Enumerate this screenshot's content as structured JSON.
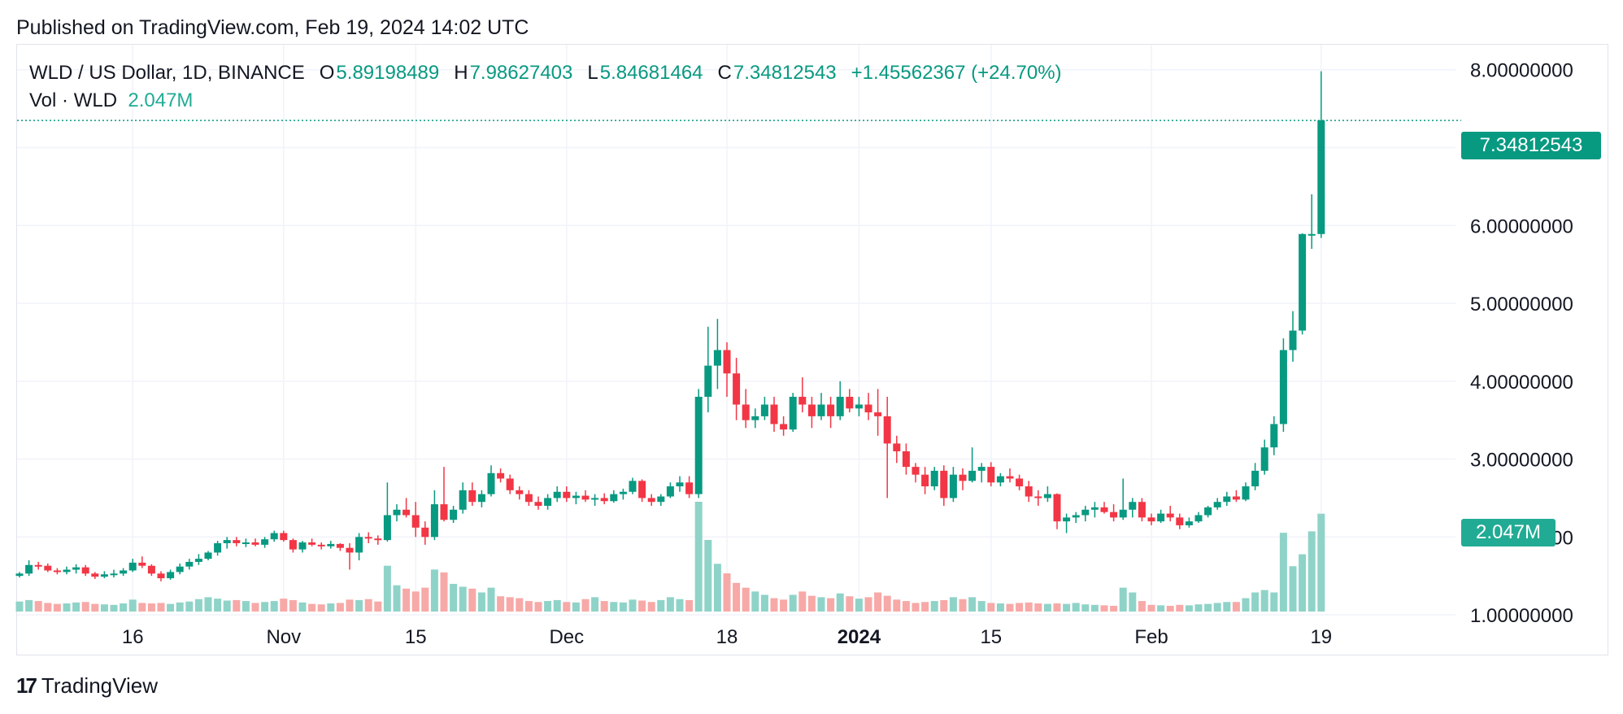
{
  "header": {
    "published": "Published on TradingView.com, Feb 19, 2024 14:02 UTC"
  },
  "legend": {
    "symbol": "WLD / US Dollar, 1D, BINANCE",
    "open_label": "O",
    "open": "5.89198489",
    "high_label": "H",
    "high": "7.98627403",
    "low_label": "L",
    "low": "5.84681464",
    "close_label": "C",
    "close": "7.34812543",
    "change": "+1.45562367 (+24.70%)",
    "volume_label": "Vol · WLD",
    "volume": "2.047M"
  },
  "price_tag": "7.34812543",
  "volume_tag": "2.047M",
  "footer": {
    "brand": "TradingView"
  },
  "colors": {
    "up": "#089981",
    "down": "#f23645",
    "volume_up": "#8fd3c8",
    "volume_down": "#f7a9a7",
    "grid": "#f0f3fa"
  },
  "chart_data": {
    "type": "candlestick",
    "y_range": [
      0.75,
      8.3
    ],
    "y_ticks": [
      "8.00000000",
      "7.00000000",
      "6.00000000",
      "5.00000000",
      "4.00000000",
      "3.00000000",
      "2.00000000",
      "1.00000000"
    ],
    "y_tick_values": [
      8,
      7,
      6,
      5,
      4,
      3,
      2,
      1
    ],
    "x_ticks": [
      {
        "label": "16",
        "index": 12,
        "bold": false
      },
      {
        "label": "Nov",
        "index": 28,
        "bold": false
      },
      {
        "label": "15",
        "index": 42,
        "bold": false
      },
      {
        "label": "Dec",
        "index": 58,
        "bold": false
      },
      {
        "label": "18",
        "index": 75,
        "bold": false
      },
      {
        "label": "2024",
        "index": 89,
        "bold": true
      },
      {
        "label": "15",
        "index": 103,
        "bold": false
      },
      {
        "label": "Feb",
        "index": 120,
        "bold": false
      },
      {
        "label": "19",
        "index": 138,
        "bold": false
      }
    ],
    "last_close": 7.348,
    "candles": [
      [
        1.5,
        1.55,
        1.48,
        1.53,
        0.21
      ],
      [
        1.53,
        1.7,
        1.5,
        1.64,
        0.24
      ],
      [
        1.64,
        1.68,
        1.58,
        1.63,
        0.22
      ],
      [
        1.63,
        1.66,
        1.55,
        1.57,
        0.18
      ],
      [
        1.57,
        1.6,
        1.52,
        1.55,
        0.16
      ],
      [
        1.55,
        1.62,
        1.52,
        1.58,
        0.17
      ],
      [
        1.58,
        1.65,
        1.53,
        1.61,
        0.19
      ],
      [
        1.61,
        1.64,
        1.5,
        1.53,
        0.2
      ],
      [
        1.53,
        1.55,
        1.46,
        1.49,
        0.16
      ],
      [
        1.49,
        1.56,
        1.47,
        1.52,
        0.15
      ],
      [
        1.52,
        1.58,
        1.48,
        1.53,
        0.14
      ],
      [
        1.53,
        1.6,
        1.5,
        1.57,
        0.17
      ],
      [
        1.57,
        1.72,
        1.55,
        1.67,
        0.25
      ],
      [
        1.67,
        1.75,
        1.6,
        1.63,
        0.18
      ],
      [
        1.63,
        1.65,
        1.5,
        1.53,
        0.17
      ],
      [
        1.53,
        1.56,
        1.43,
        1.47,
        0.18
      ],
      [
        1.47,
        1.58,
        1.45,
        1.55,
        0.16
      ],
      [
        1.55,
        1.66,
        1.52,
        1.62,
        0.19
      ],
      [
        1.62,
        1.72,
        1.58,
        1.68,
        0.21
      ],
      [
        1.68,
        1.78,
        1.64,
        1.72,
        0.26
      ],
      [
        1.72,
        1.82,
        1.7,
        1.8,
        0.3
      ],
      [
        1.8,
        1.95,
        1.76,
        1.92,
        0.27
      ],
      [
        1.92,
        2.0,
        1.85,
        1.96,
        0.23
      ],
      [
        1.96,
        2.0,
        1.88,
        1.92,
        0.24
      ],
      [
        1.92,
        1.98,
        1.87,
        1.93,
        0.22
      ],
      [
        1.93,
        1.98,
        1.88,
        1.9,
        0.18
      ],
      [
        1.9,
        2.0,
        1.86,
        1.97,
        0.2
      ],
      [
        1.97,
        2.08,
        1.94,
        2.05,
        0.22
      ],
      [
        2.05,
        2.08,
        1.94,
        1.96,
        0.27
      ],
      [
        1.96,
        1.98,
        1.8,
        1.84,
        0.24
      ],
      [
        1.84,
        1.95,
        1.8,
        1.93,
        0.19
      ],
      [
        1.93,
        1.98,
        1.88,
        1.9,
        0.16
      ],
      [
        1.9,
        1.93,
        1.84,
        1.88,
        0.15
      ],
      [
        1.88,
        1.95,
        1.85,
        1.91,
        0.17
      ],
      [
        1.91,
        1.92,
        1.82,
        1.86,
        0.18
      ],
      [
        1.86,
        1.92,
        1.58,
        1.8,
        0.25
      ],
      [
        1.8,
        2.05,
        1.7,
        2.0,
        0.24
      ],
      [
        2.0,
        2.06,
        1.92,
        1.98,
        0.26
      ],
      [
        1.98,
        2.02,
        1.9,
        1.96,
        0.21
      ],
      [
        1.96,
        2.7,
        1.94,
        2.28,
        0.96
      ],
      [
        2.28,
        2.42,
        2.2,
        2.35,
        0.55
      ],
      [
        2.35,
        2.5,
        2.25,
        2.28,
        0.48
      ],
      [
        2.28,
        2.45,
        2.0,
        2.12,
        0.42
      ],
      [
        2.12,
        2.2,
        1.9,
        2.0,
        0.5
      ],
      [
        2.0,
        2.6,
        1.96,
        2.42,
        0.88
      ],
      [
        2.42,
        2.9,
        2.2,
        2.22,
        0.82
      ],
      [
        2.22,
        2.4,
        2.18,
        2.35,
        0.58
      ],
      [
        2.35,
        2.7,
        2.3,
        2.6,
        0.52
      ],
      [
        2.6,
        2.7,
        2.4,
        2.45,
        0.48
      ],
      [
        2.45,
        2.6,
        2.38,
        2.55,
        0.4
      ],
      [
        2.55,
        2.92,
        2.52,
        2.82,
        0.5
      ],
      [
        2.82,
        2.88,
        2.7,
        2.75,
        0.32
      ],
      [
        2.75,
        2.8,
        2.55,
        2.6,
        0.3
      ],
      [
        2.6,
        2.65,
        2.48,
        2.55,
        0.28
      ],
      [
        2.55,
        2.6,
        2.4,
        2.45,
        0.22
      ],
      [
        2.45,
        2.52,
        2.35,
        2.4,
        0.2
      ],
      [
        2.4,
        2.55,
        2.35,
        2.5,
        0.22
      ],
      [
        2.5,
        2.65,
        2.45,
        2.58,
        0.24
      ],
      [
        2.58,
        2.65,
        2.45,
        2.5,
        0.2
      ],
      [
        2.5,
        2.58,
        2.42,
        2.53,
        0.19
      ],
      [
        2.53,
        2.6,
        2.45,
        2.48,
        0.26
      ],
      [
        2.48,
        2.55,
        2.4,
        2.5,
        0.3
      ],
      [
        2.5,
        2.56,
        2.42,
        2.46,
        0.22
      ],
      [
        2.46,
        2.6,
        2.44,
        2.55,
        0.2
      ],
      [
        2.55,
        2.62,
        2.48,
        2.58,
        0.19
      ],
      [
        2.58,
        2.76,
        2.55,
        2.72,
        0.25
      ],
      [
        2.72,
        2.74,
        2.45,
        2.5,
        0.23
      ],
      [
        2.5,
        2.55,
        2.4,
        2.45,
        0.2
      ],
      [
        2.45,
        2.55,
        2.4,
        2.52,
        0.24
      ],
      [
        2.52,
        2.7,
        2.5,
        2.65,
        0.3
      ],
      [
        2.65,
        2.78,
        2.58,
        2.7,
        0.26
      ],
      [
        2.7,
        2.78,
        2.5,
        2.55,
        0.24
      ],
      [
        2.55,
        3.9,
        2.5,
        3.8,
        2.3
      ],
      [
        3.8,
        4.7,
        3.6,
        4.2,
        1.5
      ],
      [
        4.2,
        4.8,
        3.9,
        4.4,
        1.0
      ],
      [
        4.4,
        4.5,
        3.8,
        4.1,
        0.8
      ],
      [
        4.1,
        4.3,
        3.5,
        3.7,
        0.6
      ],
      [
        3.7,
        3.9,
        3.4,
        3.5,
        0.5
      ],
      [
        3.5,
        3.65,
        3.4,
        3.55,
        0.42
      ],
      [
        3.55,
        3.8,
        3.5,
        3.7,
        0.35
      ],
      [
        3.7,
        3.8,
        3.35,
        3.45,
        0.28
      ],
      [
        3.45,
        3.55,
        3.3,
        3.38,
        0.25
      ],
      [
        3.38,
        3.85,
        3.35,
        3.8,
        0.35
      ],
      [
        3.8,
        4.05,
        3.6,
        3.7,
        0.42
      ],
      [
        3.7,
        3.8,
        3.4,
        3.55,
        0.33
      ],
      [
        3.55,
        3.85,
        3.5,
        3.7,
        0.3
      ],
      [
        3.7,
        3.8,
        3.4,
        3.55,
        0.28
      ],
      [
        3.55,
        4.0,
        3.5,
        3.8,
        0.38
      ],
      [
        3.8,
        3.9,
        3.6,
        3.65,
        0.32
      ],
      [
        3.65,
        3.8,
        3.55,
        3.7,
        0.27
      ],
      [
        3.7,
        3.85,
        3.5,
        3.6,
        0.3
      ],
      [
        3.6,
        3.9,
        3.3,
        3.55,
        0.4
      ],
      [
        3.55,
        3.8,
        2.5,
        3.2,
        0.33
      ],
      [
        3.2,
        3.3,
        2.95,
        3.1,
        0.25
      ],
      [
        3.1,
        3.2,
        2.8,
        2.9,
        0.22
      ],
      [
        2.9,
        2.95,
        2.7,
        2.8,
        0.18
      ],
      [
        2.8,
        2.9,
        2.55,
        2.65,
        0.2
      ],
      [
        2.65,
        2.9,
        2.6,
        2.85,
        0.22
      ],
      [
        2.85,
        2.92,
        2.4,
        2.5,
        0.24
      ],
      [
        2.5,
        2.9,
        2.45,
        2.8,
        0.3
      ],
      [
        2.8,
        2.88,
        2.6,
        2.72,
        0.26
      ],
      [
        2.72,
        3.15,
        2.7,
        2.85,
        0.3
      ],
      [
        2.85,
        2.95,
        2.7,
        2.9,
        0.22
      ],
      [
        2.9,
        2.96,
        2.65,
        2.7,
        0.18
      ],
      [
        2.7,
        2.82,
        2.65,
        2.78,
        0.17
      ],
      [
        2.78,
        2.88,
        2.7,
        2.75,
        0.16
      ],
      [
        2.75,
        2.8,
        2.6,
        2.65,
        0.18
      ],
      [
        2.65,
        2.72,
        2.45,
        2.52,
        0.19
      ],
      [
        2.52,
        2.6,
        2.4,
        2.5,
        0.17
      ],
      [
        2.5,
        2.65,
        2.45,
        2.55,
        0.16
      ],
      [
        2.55,
        2.56,
        2.1,
        2.2,
        0.17
      ],
      [
        2.2,
        2.3,
        2.05,
        2.25,
        0.16
      ],
      [
        2.25,
        2.32,
        2.18,
        2.28,
        0.18
      ],
      [
        2.28,
        2.4,
        2.2,
        2.35,
        0.15
      ],
      [
        2.35,
        2.45,
        2.25,
        2.38,
        0.14
      ],
      [
        2.38,
        2.45,
        2.3,
        2.32,
        0.13
      ],
      [
        2.32,
        2.42,
        2.2,
        2.25,
        0.12
      ],
      [
        2.25,
        2.75,
        2.22,
        2.35,
        0.5
      ],
      [
        2.35,
        2.5,
        2.25,
        2.45,
        0.4
      ],
      [
        2.45,
        2.5,
        2.2,
        2.25,
        0.22
      ],
      [
        2.25,
        2.3,
        2.15,
        2.2,
        0.14
      ],
      [
        2.2,
        2.35,
        2.18,
        2.3,
        0.13
      ],
      [
        2.3,
        2.4,
        2.2,
        2.25,
        0.12
      ],
      [
        2.25,
        2.3,
        2.1,
        2.15,
        0.14
      ],
      [
        2.15,
        2.25,
        2.12,
        2.2,
        0.13
      ],
      [
        2.2,
        2.32,
        2.18,
        2.28,
        0.15
      ],
      [
        2.28,
        2.4,
        2.25,
        2.38,
        0.16
      ],
      [
        2.38,
        2.5,
        2.35,
        2.45,
        0.18
      ],
      [
        2.45,
        2.58,
        2.4,
        2.52,
        0.2
      ],
      [
        2.52,
        2.6,
        2.45,
        2.48,
        0.2
      ],
      [
        2.48,
        2.7,
        2.46,
        2.65,
        0.28
      ],
      [
        2.65,
        2.95,
        2.6,
        2.85,
        0.4
      ],
      [
        2.85,
        3.25,
        2.8,
        3.15,
        0.45
      ],
      [
        3.15,
        3.55,
        3.05,
        3.45,
        0.4
      ],
      [
        3.45,
        4.55,
        3.35,
        4.4,
        1.65
      ],
      [
        4.4,
        4.9,
        4.25,
        4.65,
        0.95
      ],
      [
        4.65,
        5.9,
        4.6,
        5.89,
        1.2
      ],
      [
        5.89,
        6.4,
        5.7,
        5.89,
        1.68
      ],
      [
        5.89,
        7.98,
        5.84,
        7.35,
        2.05
      ]
    ]
  }
}
